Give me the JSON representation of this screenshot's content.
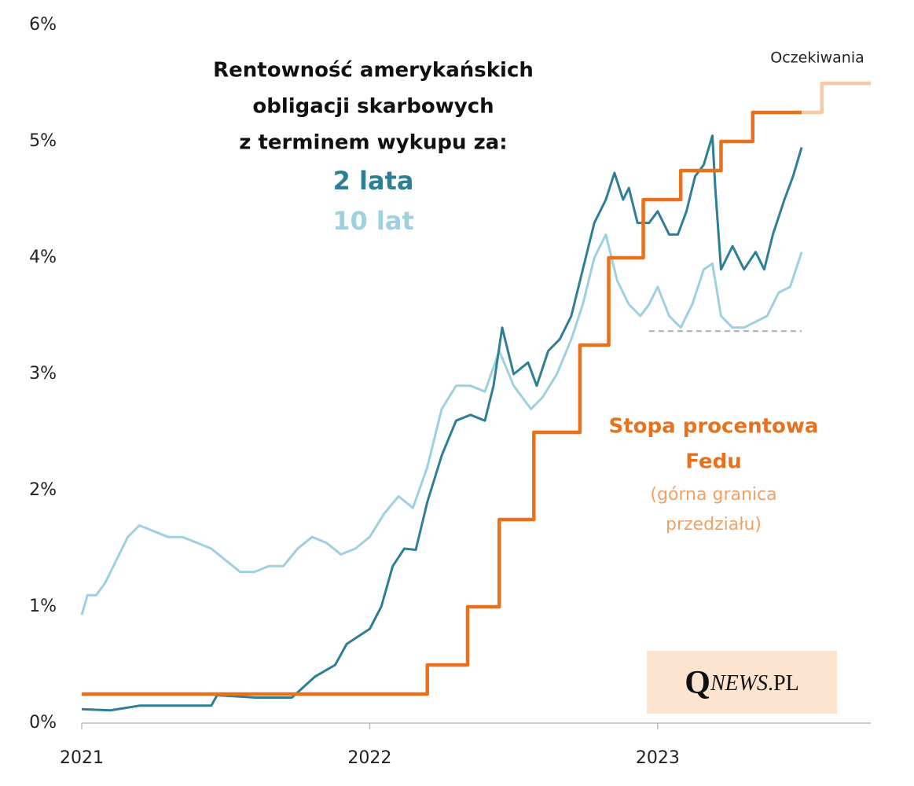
{
  "chart_data": {
    "type": "line",
    "title_lines": [
      "Rentowność amerykańskich",
      "obligacji  skarbowych",
      "z terminem wykupu za:"
    ],
    "annotations": [
      "Stopa procentowa",
      "Fedu",
      "(górna granica",
      "przedziału)"
    ],
    "logo": {
      "q": "Q",
      "news": "NEWS",
      "pl": ".PL"
    },
    "xlim": [
      2021,
      2023.74
    ],
    "xticks": [
      2021,
      2022,
      2023
    ],
    "ylim": [
      0,
      6
    ],
    "yticks": [
      {
        "value": 0,
        "label": "0%"
      },
      {
        "value": 1,
        "label": "1%"
      },
      {
        "value": 2,
        "label": "2%"
      },
      {
        "value": 3,
        "label": "3%"
      },
      {
        "value": 4,
        "label": "4%"
      },
      {
        "value": 5,
        "label": "5%"
      },
      {
        "value": 6,
        "label": "6%"
      }
    ],
    "series": [
      {
        "name": "10 lat",
        "color": "#9fd0e0",
        "x": [
          2021.0,
          2021.02,
          2021.05,
          2021.08,
          2021.12,
          2021.16,
          2021.2,
          2021.25,
          2021.3,
          2021.35,
          2021.4,
          2021.45,
          2021.5,
          2021.55,
          2021.6,
          2021.65,
          2021.7,
          2021.75,
          2021.8,
          2021.85,
          2021.9,
          2021.95,
          2022.0,
          2022.05,
          2022.1,
          2022.15,
          2022.2,
          2022.25,
          2022.3,
          2022.35,
          2022.4,
          2022.45,
          2022.5,
          2022.56,
          2022.6,
          2022.65,
          2022.7,
          2022.74,
          2022.78,
          2022.82,
          2022.86,
          2022.9,
          2022.94,
          2022.97,
          2023.0,
          2023.04,
          2023.08,
          2023.12,
          2023.16,
          2023.19,
          2023.22,
          2023.26,
          2023.3,
          2023.34,
          2023.38,
          2023.42,
          2023.46,
          2023.5
        ],
        "values": [
          0.93,
          1.1,
          1.1,
          1.2,
          1.4,
          1.6,
          1.7,
          1.65,
          1.6,
          1.6,
          1.55,
          1.5,
          1.4,
          1.3,
          1.3,
          1.35,
          1.35,
          1.5,
          1.6,
          1.55,
          1.45,
          1.5,
          1.6,
          1.8,
          1.95,
          1.85,
          2.2,
          2.7,
          2.9,
          2.9,
          2.85,
          3.2,
          2.9,
          2.7,
          2.8,
          3.0,
          3.3,
          3.6,
          4.0,
          4.2,
          3.8,
          3.6,
          3.5,
          3.6,
          3.75,
          3.5,
          3.4,
          3.6,
          3.9,
          3.95,
          3.5,
          3.4,
          3.4,
          3.45,
          3.5,
          3.7,
          3.75,
          4.05
        ]
      },
      {
        "name": "2 lata",
        "color": "#2e7f96",
        "x": [
          2021.0,
          2021.1,
          2021.2,
          2021.3,
          2021.45,
          2021.47,
          2021.6,
          2021.73,
          2021.81,
          2021.88,
          2021.92,
          2022.0,
          2022.04,
          2022.08,
          2022.12,
          2022.16,
          2022.2,
          2022.25,
          2022.3,
          2022.35,
          2022.4,
          2022.43,
          2022.46,
          2022.5,
          2022.55,
          2022.58,
          2022.62,
          2022.66,
          2022.7,
          2022.74,
          2022.78,
          2022.82,
          2022.85,
          2022.88,
          2022.9,
          2022.93,
          2022.97,
          2023.0,
          2023.04,
          2023.07,
          2023.1,
          2023.13,
          2023.16,
          2023.19,
          2023.2,
          2023.22,
          2023.26,
          2023.3,
          2023.34,
          2023.37,
          2023.4,
          2023.44,
          2023.47,
          2023.5
        ],
        "values": [
          0.12,
          0.11,
          0.15,
          0.15,
          0.15,
          0.24,
          0.22,
          0.22,
          0.4,
          0.5,
          0.68,
          0.81,
          1.0,
          1.35,
          1.5,
          1.49,
          1.9,
          2.3,
          2.6,
          2.65,
          2.6,
          2.9,
          3.4,
          3.0,
          3.1,
          2.9,
          3.2,
          3.3,
          3.5,
          3.9,
          4.3,
          4.5,
          4.73,
          4.5,
          4.6,
          4.3,
          4.3,
          4.4,
          4.2,
          4.2,
          4.4,
          4.7,
          4.8,
          5.05,
          4.6,
          3.9,
          4.1,
          3.9,
          4.05,
          3.9,
          4.2,
          4.5,
          4.7,
          4.95
        ]
      },
      {
        "color": "#e8711c",
        "step": "post",
        "x": [
          2021,
          2022.2,
          2022.34,
          2022.45,
          2022.57,
          2022.73,
          2022.83,
          2022.95,
          2023.08,
          2023.22,
          2023.33,
          2023.5
        ],
        "values": [
          0.25,
          0.5,
          1,
          1.75,
          2.5,
          3.25,
          4,
          4.5,
          4.75,
          5,
          5.25,
          5.25
        ]
      },
      {
        "name": "Oczekiwania",
        "color": "#f9c9a3",
        "step": "post",
        "x": [
          2023.5,
          2023.57,
          2023.74
        ],
        "values": [
          5.25,
          5.5,
          5.5
        ]
      },
      {
        "color": "#aaaaaa",
        "dashed": true,
        "x": [
          2022.97,
          2023.5
        ],
        "values": [
          3.37,
          3.37
        ]
      }
    ]
  }
}
